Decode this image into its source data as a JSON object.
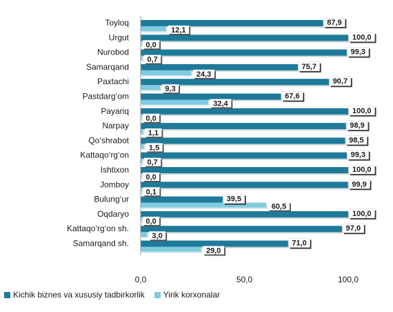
{
  "chart_data": {
    "type": "bar",
    "orientation": "horizontal",
    "categories": [
      "Toyloq",
      "Urgut",
      "Nurobod",
      "Samarqand",
      "Paxtachi",
      "Pastdarg‘om",
      "Payariq",
      "Narpay",
      "Qo‘shrabot",
      "Kattaqo‘rg‘on",
      "Ishtixon",
      "Jomboy",
      "Bulung‘ur",
      "Oqdaryo",
      "Kattaqo‘rg‘on sh.",
      "Samarqand sh."
    ],
    "series": [
      {
        "name": "Kichik biznes va xususiy tadbirkorlik",
        "color": "#1f7a99",
        "values": [
          87.9,
          100.0,
          99.3,
          75.7,
          90.7,
          67.6,
          100.0,
          98.9,
          98.5,
          99.3,
          100.0,
          99.9,
          39.5,
          100.0,
          97.0,
          71.0
        ],
        "labels": [
          "87,9",
          "100,0",
          "99,3",
          "75,7",
          "90,7",
          "67,6",
          "100,0",
          "98,9",
          "98,5",
          "99,3",
          "100,0",
          "99,9",
          "39,5",
          "100,0",
          "97,0",
          "71,0"
        ]
      },
      {
        "name": "Yirik korxonalar",
        "color": "#7fcbe0",
        "values": [
          12.1,
          0.0,
          0.7,
          24.3,
          9.3,
          32.4,
          0.0,
          1.1,
          1.5,
          0.7,
          0.0,
          0.1,
          60.5,
          0.0,
          3.0,
          29.0
        ],
        "labels": [
          "12,1",
          "0,0",
          "0,7",
          "24,3",
          "9,3",
          "32,4",
          "0,0",
          "1,1",
          "1,5",
          "0,7",
          "0,0",
          "0,1",
          "60,5",
          "0,0",
          "3,0",
          "29,0"
        ]
      }
    ],
    "xlim": [
      0,
      100
    ],
    "x_ticks": [
      0,
      50,
      100
    ],
    "x_tick_labels": [
      "0,0",
      "50,0",
      "100,0"
    ],
    "grid": false,
    "legend_position": "bottom-left"
  }
}
